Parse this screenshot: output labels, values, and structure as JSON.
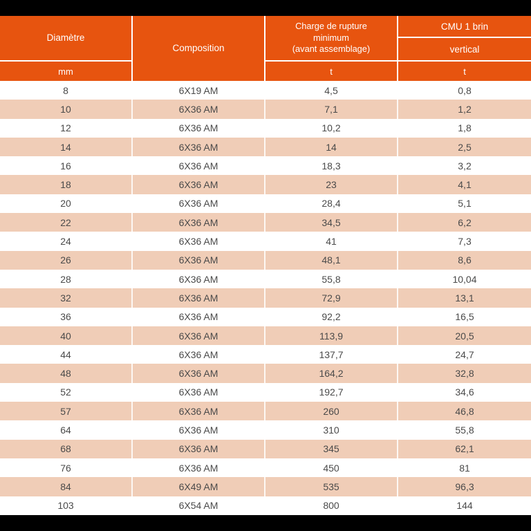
{
  "colors": {
    "header_orange": "#E7540F",
    "row_peach": "#F0CDB7",
    "body_text": "#4A4A4A",
    "frame_black": "#000000"
  },
  "table": {
    "header": {
      "diametre": {
        "label": "Diamètre",
        "unit": "mm"
      },
      "composition": {
        "label": "Composition"
      },
      "charge": {
        "line1": "Charge de rupture",
        "line2": "minimum",
        "line3": "(avant assemblage)",
        "unit": "t"
      },
      "cmu": {
        "label": "CMU 1 brin",
        "direction": "vertical",
        "unit": "t"
      }
    },
    "rows": [
      {
        "diametre": "8",
        "composition": "6X19 AM",
        "charge": "4,5",
        "cmu": "0,8"
      },
      {
        "diametre": "10",
        "composition": "6X36 AM",
        "charge": "7,1",
        "cmu": "1,2"
      },
      {
        "diametre": "12",
        "composition": "6X36 AM",
        "charge": "10,2",
        "cmu": "1,8"
      },
      {
        "diametre": "14",
        "composition": "6X36 AM",
        "charge": "14",
        "cmu": "2,5"
      },
      {
        "diametre": "16",
        "composition": "6X36 AM",
        "charge": "18,3",
        "cmu": "3,2"
      },
      {
        "diametre": "18",
        "composition": "6X36 AM",
        "charge": "23",
        "cmu": "4,1"
      },
      {
        "diametre": "20",
        "composition": "6X36 AM",
        "charge": "28,4",
        "cmu": "5,1"
      },
      {
        "diametre": "22",
        "composition": "6X36 AM",
        "charge": "34,5",
        "cmu": "6,2"
      },
      {
        "diametre": "24",
        "composition": "6X36 AM",
        "charge": "41",
        "cmu": "7,3"
      },
      {
        "diametre": "26",
        "composition": "6X36 AM",
        "charge": "48,1",
        "cmu": "8,6"
      },
      {
        "diametre": "28",
        "composition": "6X36 AM",
        "charge": "55,8",
        "cmu": "10,04"
      },
      {
        "diametre": "32",
        "composition": "6X36 AM",
        "charge": "72,9",
        "cmu": "13,1"
      },
      {
        "diametre": "36",
        "composition": "6X36 AM",
        "charge": "92,2",
        "cmu": "16,5"
      },
      {
        "diametre": "40",
        "composition": "6X36 AM",
        "charge": "113,9",
        "cmu": "20,5"
      },
      {
        "diametre": "44",
        "composition": "6X36 AM",
        "charge": "137,7",
        "cmu": "24,7"
      },
      {
        "diametre": "48",
        "composition": "6X36 AM",
        "charge": "164,2",
        "cmu": "32,8"
      },
      {
        "diametre": "52",
        "composition": "6X36 AM",
        "charge": "192,7",
        "cmu": "34,6"
      },
      {
        "diametre": "57",
        "composition": "6X36 AM",
        "charge": "260",
        "cmu": "46,8"
      },
      {
        "diametre": "64",
        "composition": "6X36 AM",
        "charge": "310",
        "cmu": "55,8"
      },
      {
        "diametre": "68",
        "composition": "6X36 AM",
        "charge": "345",
        "cmu": "62,1"
      },
      {
        "diametre": "76",
        "composition": "6X36 AM",
        "charge": "450",
        "cmu": "81"
      },
      {
        "diametre": "84",
        "composition": "6X49 AM",
        "charge": "535",
        "cmu": "96,3"
      },
      {
        "diametre": "103",
        "composition": "6X54 AM",
        "charge": "800",
        "cmu": "144"
      }
    ]
  }
}
